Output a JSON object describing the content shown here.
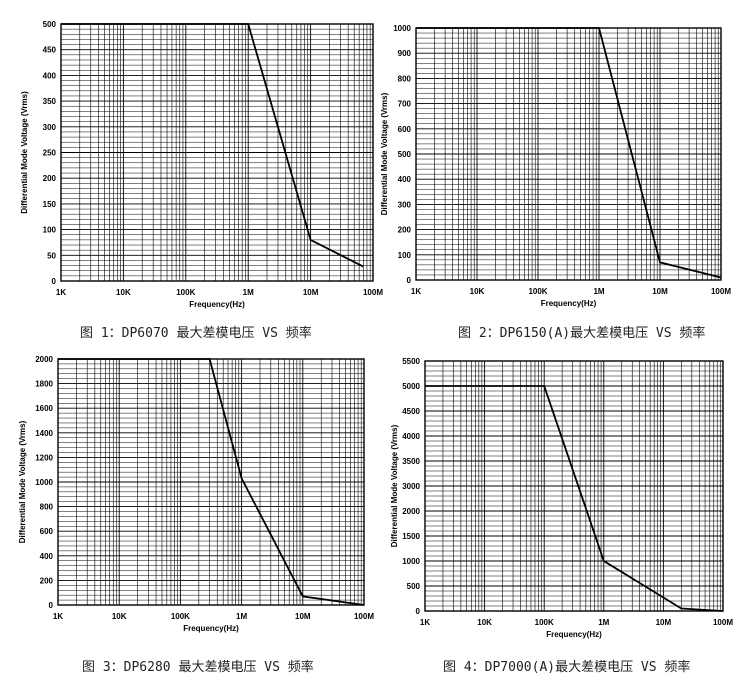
{
  "chart_data": [
    {
      "type": "line",
      "xscale": "log",
      "xlabel": "Frequency(Hz)",
      "ylabel": "Differential Mode Voltage (Vrms)",
      "xlim": [
        1000,
        100000000
      ],
      "ylim": [
        0,
        500
      ],
      "x_ticks": [
        1000,
        10000,
        100000,
        1000000,
        10000000,
        100000000
      ],
      "x_tick_labels": [
        "1K",
        "10K",
        "100K",
        "1M",
        "10M",
        "100M"
      ],
      "y_ticks": [
        0,
        50,
        100,
        150,
        200,
        250,
        300,
        350,
        400,
        450,
        500
      ],
      "y_tick_labels": [
        "0",
        "50",
        "100",
        "150",
        "200",
        "250",
        "300",
        "350",
        "400",
        "450",
        "500"
      ],
      "grid": true,
      "x": [
        1000,
        1000000,
        10000000,
        70000000
      ],
      "y": [
        500,
        500,
        80,
        28
      ],
      "caption": "图 1：DP6070 最大差模电压 VS 频率"
    },
    {
      "type": "line",
      "xscale": "log",
      "xlabel": "Frequency(Hz)",
      "ylabel": "Differential Mode Voltage (Vrms)",
      "xlim": [
        1000,
        100000000
      ],
      "ylim": [
        0,
        1000
      ],
      "x_ticks": [
        1000,
        10000,
        100000,
        1000000,
        10000000,
        100000000
      ],
      "x_tick_labels": [
        "1K",
        "10K",
        "100K",
        "1M",
        "10M",
        "100M"
      ],
      "y_ticks": [
        0,
        100,
        200,
        300,
        400,
        500,
        600,
        700,
        800,
        900,
        1000
      ],
      "y_tick_labels": [
        "0",
        "100",
        "200",
        "300",
        "400",
        "500",
        "600",
        "700",
        "800",
        "900",
        "1000"
      ],
      "grid": true,
      "x": [
        1000,
        1000000,
        10000000,
        100000000
      ],
      "y": [
        1000,
        1000,
        70,
        10
      ],
      "caption": "图 2：DP6150(A)最大差模电压 VS 频率"
    },
    {
      "type": "line",
      "xscale": "log",
      "xlabel": "Frequency(Hz)",
      "ylabel": "Differential Mode Voltage (Vrms)",
      "xlim": [
        1000,
        100000000
      ],
      "ylim": [
        0,
        2000
      ],
      "x_ticks": [
        1000,
        10000,
        100000,
        1000000,
        10000000,
        100000000
      ],
      "x_tick_labels": [
        "1K",
        "10K",
        "100K",
        "1M",
        "10M",
        "100M"
      ],
      "y_ticks": [
        0,
        200,
        400,
        600,
        800,
        1000,
        1200,
        1400,
        1600,
        1800,
        2000
      ],
      "y_tick_labels": [
        "0",
        "200",
        "400",
        "600",
        "800",
        "1000",
        "1200",
        "1400",
        "1600",
        "1800",
        "2000"
      ],
      "grid": true,
      "x": [
        1000,
        300000,
        1000000,
        10000000,
        100000000
      ],
      "y": [
        2000,
        2000,
        1030,
        70,
        0
      ],
      "caption": "图 3：DP6280 最大差模电压 VS 频率"
    },
    {
      "type": "line",
      "xscale": "log",
      "xlabel": "Frequency(Hz)",
      "ylabel": "Differential Mode Voltage (Vrms)",
      "xlim": [
        1000,
        100000000
      ],
      "ylim": [
        0,
        5500
      ],
      "x_ticks": [
        1000,
        10000,
        100000,
        1000000,
        10000000,
        100000000
      ],
      "x_tick_labels": [
        "1K",
        "10K",
        "100K",
        "1M",
        "10M",
        "100M"
      ],
      "y_ticks": [
        0,
        500,
        1000,
        1500,
        2000,
        3000,
        3500,
        4000,
        4500,
        5000,
        5500
      ],
      "y_tick_labels": [
        "0",
        "500",
        "1000",
        "1500",
        "2000",
        "3000",
        "3500",
        "4000",
        "4500",
        "5000",
        "5500"
      ],
      "grid": true,
      "x": [
        1000,
        100000,
        1000000,
        20000000,
        100000000
      ],
      "y": [
        5000,
        5000,
        1000,
        50,
        0
      ],
      "caption": "图 4：DP7000(A)最大差模电压 VS 频率"
    }
  ]
}
